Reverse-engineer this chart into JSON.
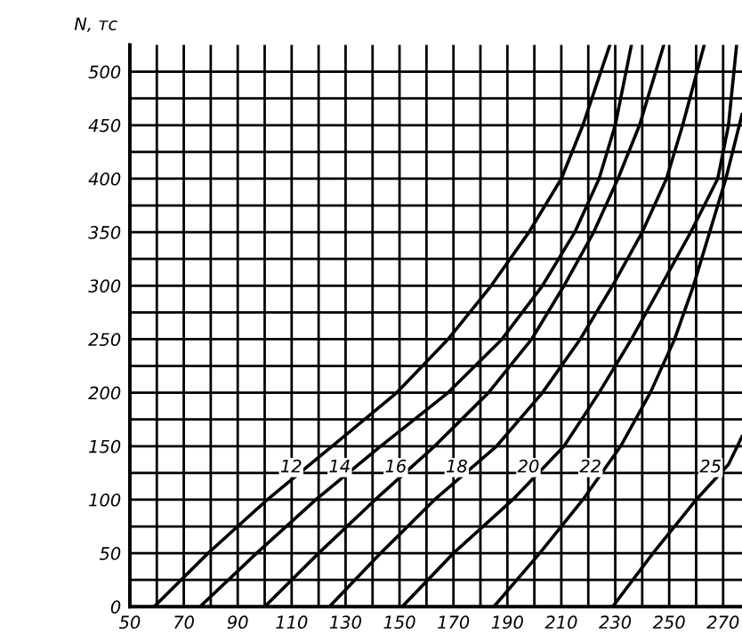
{
  "chart_data": {
    "type": "line",
    "ylabel": "N, тс",
    "xlim": [
      50,
      277
    ],
    "ylim": [
      0,
      525
    ],
    "xticks": [
      50,
      {
        "value": 60,
        "label": null
      },
      70,
      {
        "value": 80,
        "label": null
      },
      90,
      {
        "value": 100,
        "label": null
      },
      110,
      {
        "value": 120,
        "label": null
      },
      130,
      {
        "value": 140,
        "label": null
      },
      150,
      {
        "value": 160,
        "label": null
      },
      170,
      {
        "value": 180,
        "label": null
      },
      190,
      {
        "value": 200,
        "label": null
      },
      210,
      {
        "value": 220,
        "label": null
      },
      230,
      {
        "value": 240,
        "label": null
      },
      250,
      {
        "value": 260,
        "label": null
      },
      270
    ],
    "yticks": [
      0,
      {
        "value": 25,
        "label": null
      },
      50,
      {
        "value": 75,
        "label": null
      },
      100,
      {
        "value": 125,
        "label": null
      },
      150,
      {
        "value": 175,
        "label": null
      },
      200,
      {
        "value": 225,
        "label": null
      },
      250,
      {
        "value": 275,
        "label": null
      },
      300,
      {
        "value": 325,
        "label": null
      },
      350,
      {
        "value": 375,
        "label": null
      },
      400,
      {
        "value": 425,
        "label": null
      },
      450,
      {
        "value": 475,
        "label": null
      },
      500
    ],
    "grid": true,
    "marker": "none",
    "line_style": "solid",
    "series": [
      {
        "name": "12",
        "color": "#000000",
        "x": [
          59,
          79,
          101,
          125,
          149,
          168,
          184,
          198,
          210,
          218,
          228
        ],
        "values": [
          0,
          50,
          100,
          150,
          200,
          250,
          300,
          350,
          400,
          450,
          525
        ]
      },
      {
        "name": "14",
        "color": "#000000",
        "x": [
          76,
          97,
          119,
          143,
          168,
          188,
          203,
          215,
          224,
          230,
          236
        ],
        "values": [
          0,
          50,
          100,
          150,
          200,
          250,
          300,
          350,
          400,
          450,
          525
        ]
      },
      {
        "name": "16",
        "color": "#000000",
        "x": [
          100,
          120,
          141,
          163,
          183,
          199,
          211,
          222,
          231,
          239,
          248
        ],
        "values": [
          0,
          50,
          100,
          150,
          200,
          250,
          300,
          350,
          400,
          450,
          525
        ]
      },
      {
        "name": "18",
        "color": "#000000",
        "x": [
          124,
          143,
          163,
          186,
          203,
          217,
          229,
          240,
          249,
          255,
          263
        ],
        "values": [
          0,
          50,
          100,
          150,
          200,
          250,
          300,
          350,
          400,
          450,
          525
        ]
      },
      {
        "name": "20",
        "color": "#000000",
        "x": [
          151,
          170,
          192,
          211,
          224,
          236,
          247,
          258,
          268,
          272,
          275
        ],
        "values": [
          0,
          50,
          100,
          150,
          200,
          250,
          300,
          350,
          400,
          450,
          525
        ]
      },
      {
        "name": "22",
        "color": "#000000",
        "x": [
          185,
          202,
          218,
          232,
          243,
          252,
          259,
          265,
          271,
          277
        ],
        "values": [
          0,
          50,
          100,
          150,
          200,
          250,
          300,
          350,
          400,
          460
        ]
      },
      {
        "name": "25",
        "color": "#000000",
        "x": [
          229,
          244,
          260,
          272,
          277
        ],
        "values": [
          0,
          50,
          100,
          133,
          159
        ]
      }
    ]
  }
}
